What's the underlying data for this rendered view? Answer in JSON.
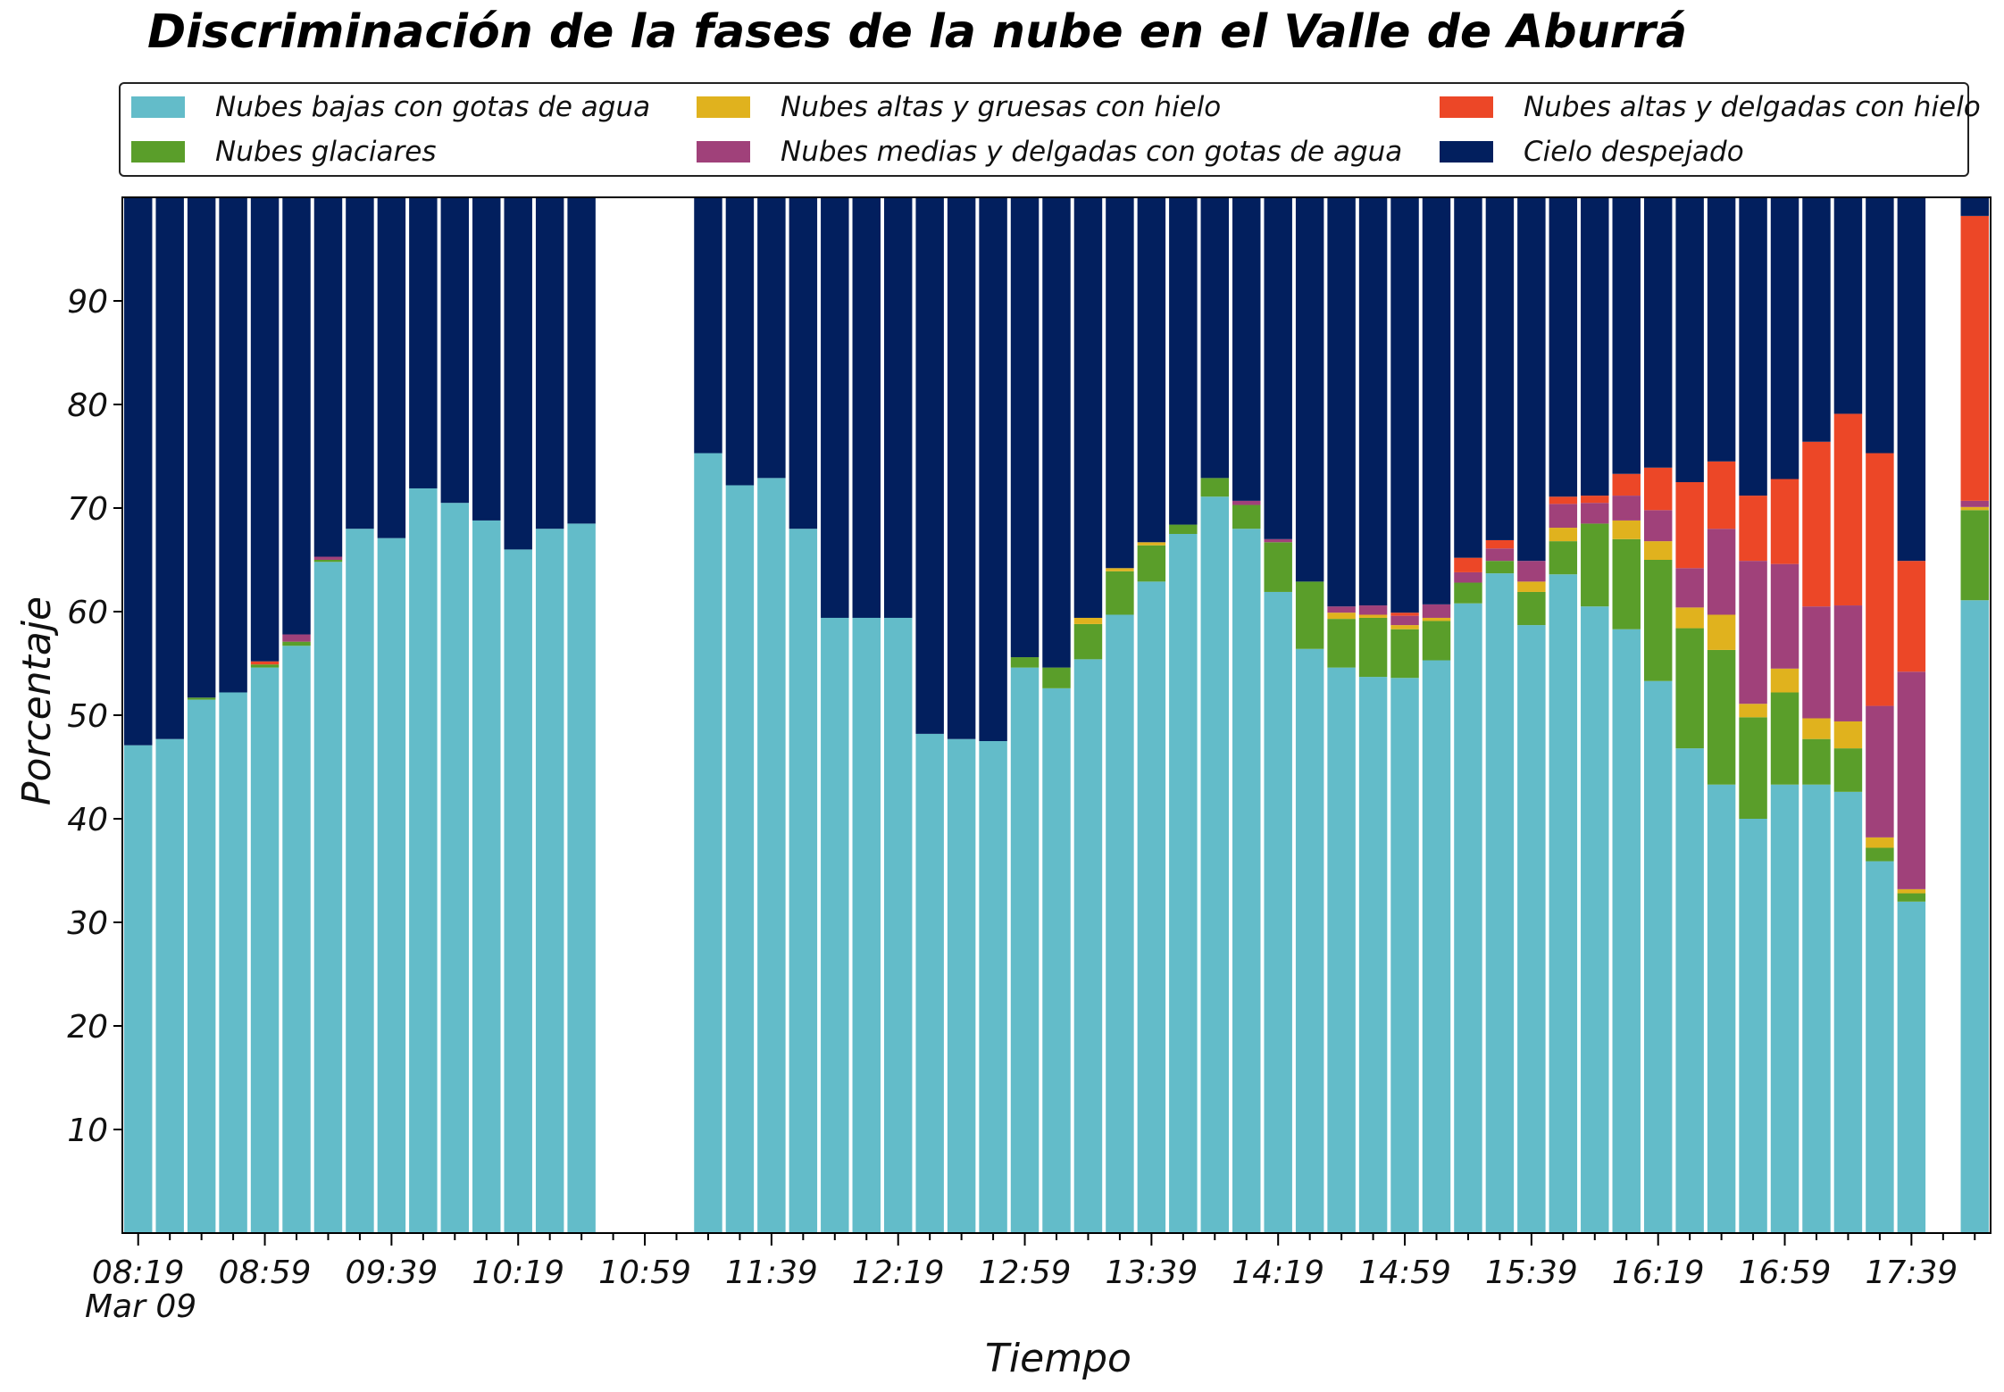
{
  "chart_data": {
    "type": "bar",
    "stacked": true,
    "title": "Discriminación de la fases de la nube en el Valle de Aburrá",
    "xlabel": "Tiempo",
    "ylabel": "Porcentaje",
    "ylim": [
      0,
      100
    ],
    "yticks": [
      10,
      20,
      30,
      40,
      50,
      60,
      70,
      80,
      90
    ],
    "grid": false,
    "legend_position": "top",
    "x_tick_labels": [
      "08:19",
      "08:59",
      "09:39",
      "10:19",
      "10:59",
      "11:39",
      "12:19",
      "12:59",
      "13:39",
      "14:19",
      "14:59",
      "15:39",
      "16:19",
      "16:59",
      "17:39"
    ],
    "x_date_label": "Mar 09",
    "series": [
      {
        "name": "Nubes bajas con gotas de agua",
        "color": "#63BCC9",
        "values": [
          47.1,
          47.7,
          51.5,
          52.2,
          54.6,
          56.7,
          64.8,
          68.0,
          67.1,
          71.9,
          70.5,
          68.8,
          66.0,
          68.0,
          68.5,
          null,
          null,
          null,
          75.3,
          72.2,
          72.9,
          68.0,
          59.4,
          59.4,
          59.4,
          48.2,
          47.7,
          47.5,
          54.6,
          52.6,
          55.4,
          59.7,
          62.9,
          67.5,
          71.1,
          68.0,
          61.9,
          56.4,
          54.6,
          53.7,
          53.6,
          55.3,
          60.8,
          63.7,
          58.7,
          63.6,
          60.5,
          58.3,
          53.3,
          46.8,
          43.3,
          40.0,
          43.3,
          43.3,
          42.6,
          35.9,
          32.0,
          null,
          61.1
        ]
      },
      {
        "name": "Nubes glaciares",
        "color": "#5A9E2A",
        "values": [
          0,
          0,
          0.2,
          0,
          0.3,
          0.4,
          0.2,
          0,
          0,
          0,
          0,
          0,
          0,
          0,
          0,
          null,
          null,
          null,
          0,
          0,
          0,
          0,
          0,
          0,
          0,
          0,
          0,
          0,
          1.0,
          2.0,
          3.4,
          4.2,
          3.5,
          0.9,
          1.8,
          2.3,
          4.8,
          6.5,
          4.7,
          5.7,
          4.7,
          3.8,
          2.0,
          1.2,
          3.2,
          3.2,
          8.0,
          8.7,
          11.7,
          11.6,
          13.0,
          9.8,
          8.9,
          4.4,
          4.2,
          1.3,
          0.8,
          null,
          8.7
        ]
      },
      {
        "name": "Nubes altas y gruesas con hielo",
        "color": "#E0B21E",
        "values": [
          0,
          0,
          0,
          0,
          0,
          0,
          0,
          0,
          0,
          0,
          0,
          0,
          0,
          0,
          0,
          null,
          null,
          null,
          0,
          0,
          0,
          0,
          0,
          0,
          0,
          0,
          0,
          0,
          0,
          0,
          0.6,
          0.3,
          0.3,
          0,
          0,
          0,
          0,
          0,
          0.6,
          0.3,
          0.4,
          0.3,
          0,
          0,
          1.0,
          1.3,
          0,
          1.8,
          1.8,
          2.0,
          3.4,
          1.3,
          2.3,
          2.0,
          2.6,
          1.0,
          0.4,
          null,
          0.3
        ]
      },
      {
        "name": "Nubes medias y delgadas con gotas de agua",
        "color": "#A0417A",
        "values": [
          0,
          0,
          0,
          0,
          0,
          0.7,
          0.3,
          0,
          0,
          0,
          0,
          0,
          0,
          0,
          0,
          null,
          null,
          null,
          0,
          0,
          0,
          0,
          0,
          0,
          0,
          0,
          0,
          0,
          0,
          0,
          0,
          0,
          0,
          0,
          0,
          0.4,
          0.3,
          0,
          0.6,
          0.9,
          0.9,
          1.3,
          1.0,
          1.2,
          2.0,
          2.3,
          2.0,
          2.4,
          3.0,
          3.8,
          8.3,
          13.8,
          10.1,
          10.8,
          11.2,
          12.7,
          21.0,
          null,
          0.6
        ]
      },
      {
        "name": "Nubes altas y delgadas con hielo",
        "color": "#EC4727",
        "values": [
          0,
          0,
          0,
          0,
          0.3,
          0,
          0,
          0,
          0,
          0,
          0,
          0,
          0,
          0,
          0,
          null,
          null,
          null,
          0,
          0,
          0,
          0,
          0,
          0,
          0,
          0,
          0,
          0,
          0,
          0,
          0,
          0,
          0,
          0,
          0,
          0,
          0,
          0,
          0,
          0,
          0.3,
          0,
          1.4,
          0.8,
          0,
          0.7,
          0.7,
          2.1,
          4.1,
          8.3,
          6.5,
          6.3,
          8.2,
          15.9,
          18.5,
          24.4,
          10.7,
          null,
          27.5
        ]
      },
      {
        "name": "Cielo despejado",
        "color": "#021F5E",
        "values": [
          52.9,
          52.3,
          48.3,
          47.8,
          44.8,
          42.2,
          34.7,
          32.0,
          32.9,
          28.1,
          29.5,
          31.2,
          34.0,
          32.0,
          31.5,
          null,
          null,
          null,
          24.7,
          27.8,
          27.1,
          32.0,
          40.6,
          40.6,
          40.6,
          51.8,
          52.3,
          52.5,
          44.4,
          45.4,
          40.6,
          35.8,
          33.3,
          31.6,
          27.1,
          29.3,
          33.0,
          37.1,
          39.5,
          39.4,
          40.1,
          39.3,
          34.8,
          33.1,
          35.1,
          28.9,
          28.8,
          26.7,
          26.1,
          27.5,
          25.5,
          28.8,
          27.2,
          23.6,
          20.9,
          24.7,
          35.1,
          null,
          1.8
        ]
      }
    ]
  }
}
